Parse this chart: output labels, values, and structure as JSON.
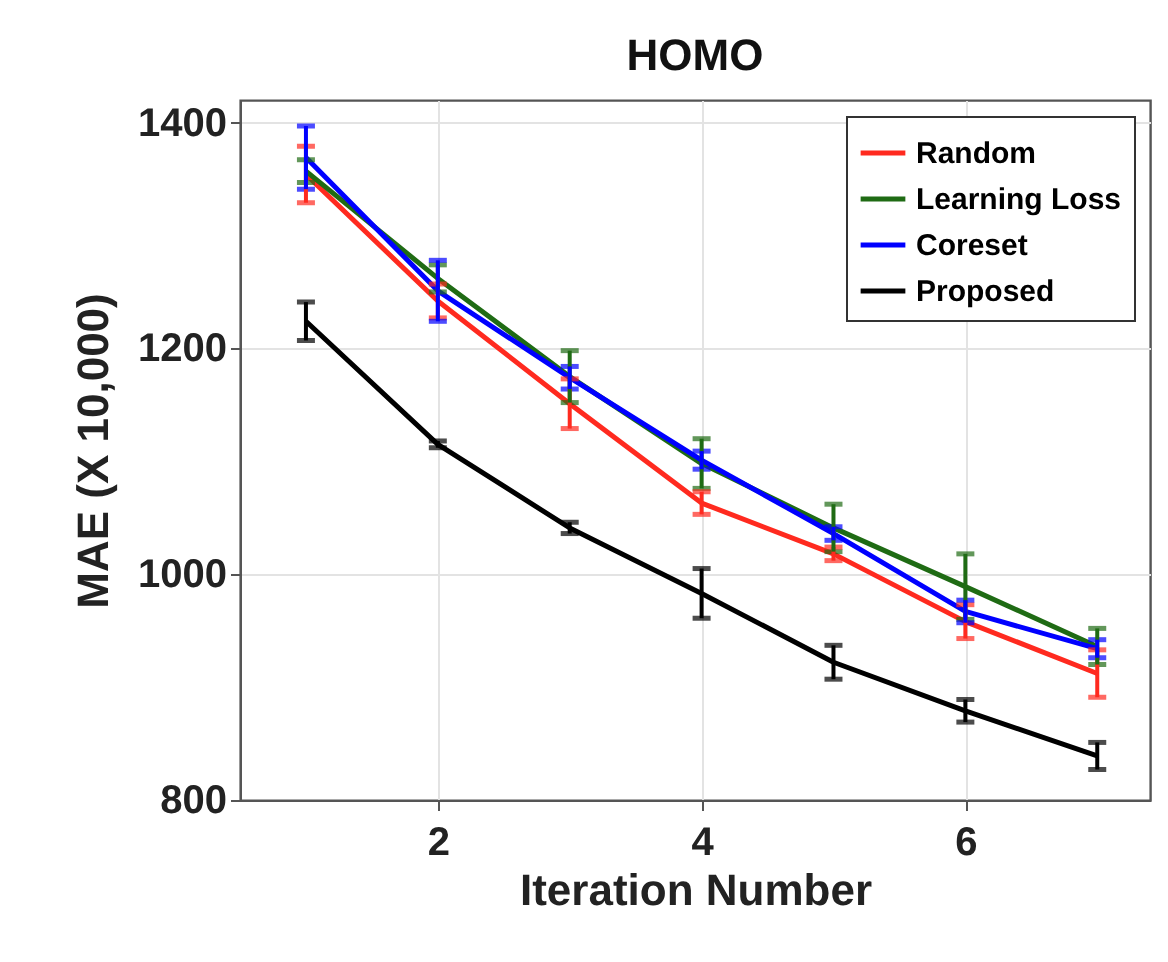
{
  "chart_data": {
    "type": "line",
    "title": "HOMO",
    "xlabel": "Iteration Number",
    "ylabel": "MAE (X 10,000)",
    "x": [
      1,
      2,
      3,
      4,
      5,
      6,
      7
    ],
    "series": [
      {
        "name": "Random",
        "color": "#ff2a1f",
        "values": [
          1354,
          1242,
          1151,
          1063,
          1018,
          958,
          912
        ],
        "errors": [
          25,
          15,
          22,
          10,
          6,
          15,
          21
        ]
      },
      {
        "name": "Learning Loss",
        "color": "#1f6b14",
        "values": [
          1357,
          1262,
          1175,
          1098,
          1041,
          989,
          936
        ],
        "errors": [
          10,
          12,
          23,
          22,
          21,
          29,
          16
        ]
      },
      {
        "name": "Coreset",
        "color": "#0000ff",
        "values": [
          1369,
          1251,
          1174,
          1101,
          1036,
          967,
          934
        ],
        "errors": [
          28,
          27,
          10,
          8,
          6,
          10,
          8
        ]
      },
      {
        "name": "Proposed",
        "color": "#000000",
        "values": [
          1224,
          1115,
          1041,
          983,
          922,
          879,
          839
        ],
        "errors": [
          17,
          3,
          5,
          22,
          15,
          10,
          12
        ]
      }
    ],
    "xlim": [
      0.5,
      7.4
    ],
    "ylim": [
      800,
      1420
    ],
    "xticks": [
      2,
      4,
      6
    ],
    "yticks": [
      800,
      1000,
      1200,
      1400
    ],
    "grid": true,
    "legend": "top right"
  }
}
